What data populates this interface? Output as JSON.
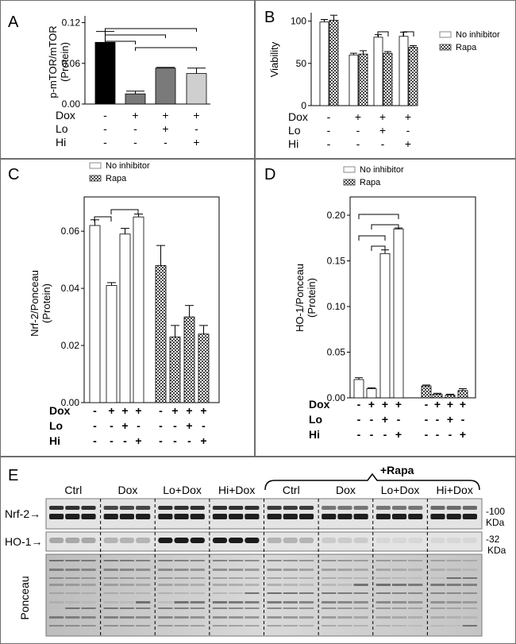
{
  "colors": {
    "black": "#000000",
    "dark_gray": "#7a7a7a",
    "light_gray": "#cfcfcf",
    "white": "#ffffff",
    "checker": "#555555"
  },
  "conditions": {
    "labels": [
      "Dox",
      "Lo",
      "Hi"
    ],
    "signs": [
      [
        "-",
        "+",
        "+",
        "+"
      ],
      [
        "-",
        "-",
        "+",
        "-"
      ],
      [
        "-",
        "-",
        "-",
        "+"
      ]
    ]
  },
  "legend": {
    "no_inhibitor": "No inhibitor",
    "rapa": "Rapa"
  },
  "chart_data": [
    {
      "panel": "A",
      "type": "bar",
      "ylabel": "p-mTOR/mTOR (Protein)",
      "ylabel_lines": [
        "p-mTOR/mTOR",
        "(Protein)"
      ],
      "ylim": [
        0,
        0.13
      ],
      "yticks": [
        "0.00",
        "0.06",
        "0.12"
      ],
      "ytick_values": [
        0,
        0.06,
        0.12
      ],
      "values": [
        0.091,
        0.015,
        0.053,
        0.045
      ],
      "errors": [
        0.016,
        0.004,
        0.001,
        0.008
      ],
      "fills": [
        "black",
        "dark_gray",
        "dark_gray",
        "light_gray"
      ]
    },
    {
      "panel": "B",
      "type": "bar",
      "ylabel": "Viability",
      "ylim": [
        0,
        110
      ],
      "yticks": [
        "0",
        "50",
        "100"
      ],
      "ytick_values": [
        0,
        50,
        100
      ],
      "series": [
        {
          "name": "No inhibitor",
          "values": [
            99,
            60,
            81,
            82
          ],
          "errors": [
            3,
            2,
            3,
            5
          ]
        },
        {
          "name": "Rapa",
          "values": [
            101,
            61,
            62,
            69
          ],
          "errors": [
            6,
            4,
            2,
            2
          ]
        }
      ]
    },
    {
      "panel": "C",
      "type": "bar",
      "ylabel": "Nrf-2/Ponceau (Protein)",
      "ylabel_lines": [
        "Nrf-2/Ponceau",
        "(Protein)"
      ],
      "ylim": [
        0,
        0.072
      ],
      "yticks": [
        "0.00",
        "0.02",
        "0.04",
        "0.06"
      ],
      "ytick_values": [
        0,
        0.02,
        0.04,
        0.06
      ],
      "series": [
        {
          "name": "No inhibitor",
          "values": [
            0.062,
            0.041,
            0.059,
            0.065
          ],
          "errors": [
            0.002,
            0.001,
            0.002,
            0.001
          ]
        },
        {
          "name": "Rapa",
          "values": [
            0.048,
            0.023,
            0.03,
            0.024
          ],
          "errors": [
            0.007,
            0.004,
            0.004,
            0.003
          ]
        }
      ]
    },
    {
      "panel": "D",
      "type": "bar",
      "ylabel": "HO-1/Ponceau (Protein)",
      "ylabel_lines": [
        "HO-1/Ponceau",
        "(Protein)"
      ],
      "ylim": [
        0,
        0.22
      ],
      "yticks": [
        "0.00",
        "0.05",
        "0.10",
        "0.15",
        "0.20"
      ],
      "ytick_values": [
        0,
        0.05,
        0.1,
        0.15,
        0.2
      ],
      "series": [
        {
          "name": "No inhibitor",
          "values": [
            0.02,
            0.01,
            0.158,
            0.185
          ],
          "errors": [
            0.002,
            0.001,
            0.004,
            0.001
          ]
        },
        {
          "name": "Rapa",
          "values": [
            0.013,
            0.004,
            0.003,
            0.008
          ],
          "errors": [
            0.001,
            0.001,
            0.001,
            0.002
          ]
        }
      ]
    }
  ],
  "blot": {
    "panel": "E",
    "rapa_label": "+Rapa",
    "groups": [
      "Ctrl",
      "Dox",
      "Lo+Dox",
      "Hi+Dox",
      "Ctrl",
      "Dox",
      "Lo+Dox",
      "Hi+Dox"
    ],
    "rows": [
      {
        "label": "Nrf-2→",
        "marker": "-100",
        "unit": "KDa"
      },
      {
        "label": "HO-1→",
        "marker": "-32",
        "unit": "KDa"
      },
      {
        "label": "Ponceau"
      }
    ],
    "ho1_intensity": [
      0.35,
      0.3,
      0.95,
      0.95,
      0.3,
      0.2,
      0.15,
      0.15
    ],
    "nrf2_intensity": [
      0.9,
      0.8,
      0.9,
      0.9,
      0.85,
      0.6,
      0.6,
      0.65
    ]
  }
}
